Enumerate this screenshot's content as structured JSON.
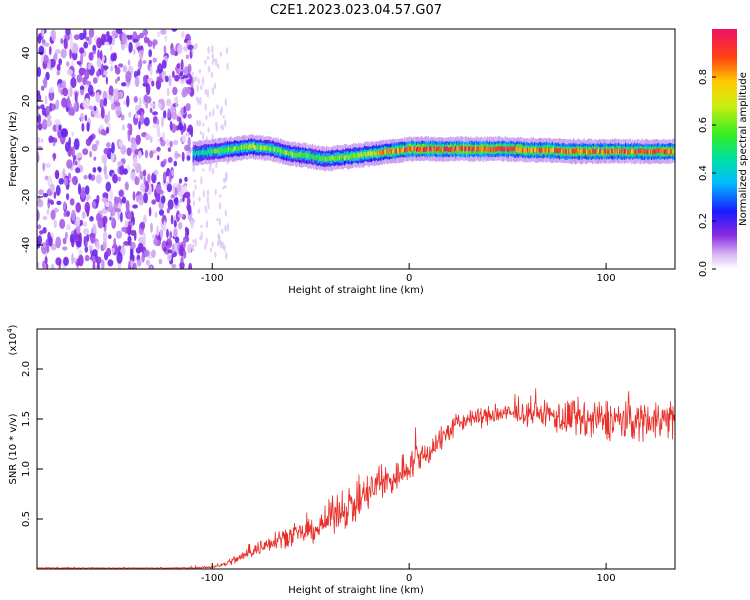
{
  "title": "C2E1.2023.023.04.57.G07",
  "colors": {
    "snr_line": "#e8302a",
    "axis": "#000000"
  },
  "chart_data": [
    {
      "type": "heatmap",
      "title": "C2E1.2023.023.04.57.G07",
      "xlabel": "Height of straight line (km)",
      "ylabel": "Frequency (Hz)",
      "xlim": [
        -189,
        135
      ],
      "ylim": [
        -50,
        50
      ],
      "x_ticks": [
        -100,
        0,
        100
      ],
      "y_ticks": [
        -40,
        -20,
        0,
        20,
        40
      ],
      "x_tick_labels": [
        "-100",
        "0",
        "100"
      ],
      "y_tick_labels": [
        "-40",
        "-20",
        "0",
        "20",
        "40"
      ],
      "colorbar": {
        "label": "Normalized spectral amplitude",
        "range": [
          0,
          1
        ],
        "ticks": [
          0.0,
          0.2,
          0.4,
          0.6,
          0.8
        ],
        "tick_labels": [
          "0.0",
          "0.2",
          "0.4",
          "0.6",
          "0.8"
        ]
      },
      "noise_region": {
        "x": [
          -189,
          -110
        ],
        "y": [
          -50,
          50
        ],
        "amplitude": 0.15
      },
      "ridge": {
        "x": [
          -110,
          -100,
          -90,
          -80,
          -70,
          -60,
          -50,
          -45,
          -40,
          -30,
          -20,
          -10,
          0,
          10,
          20,
          30,
          40,
          50,
          60,
          70,
          80,
          90,
          100,
          110,
          120,
          135
        ],
        "frequency_hz": [
          -2,
          -1,
          0,
          1,
          0,
          -2,
          -3,
          -4,
          -4,
          -3,
          -2,
          -1,
          0,
          0,
          0,
          0,
          0,
          0,
          -0.5,
          -0.5,
          -1,
          -1,
          -1,
          -1,
          -1,
          -1
        ],
        "peak_amplitude": [
          0.45,
          0.55,
          0.6,
          0.65,
          0.6,
          0.6,
          0.55,
          0.55,
          0.6,
          0.65,
          0.7,
          0.8,
          0.9,
          0.9,
          0.92,
          0.92,
          0.9,
          0.9,
          0.85,
          0.85,
          0.85,
          0.85,
          0.85,
          0.85,
          0.85,
          0.85
        ]
      }
    },
    {
      "type": "line",
      "xlabel": "Height of straight line (km)",
      "ylabel": "SNR (10 * v/v)",
      "y_scale_label": "(x10",
      "y_scale_exponent": "4",
      "y_scale_suffix": ")",
      "xlim": [
        -189,
        135
      ],
      "ylim": [
        0,
        2.4
      ],
      "x_ticks": [
        -100,
        0,
        100
      ],
      "x_tick_labels": [
        "-100",
        "0",
        "100"
      ],
      "y_ticks": [
        0.5,
        1.0,
        1.5,
        2.0
      ],
      "y_tick_labels": [
        "0.5",
        "1.0",
        "1.5",
        "2.0"
      ],
      "series": [
        {
          "color": "#e8302a",
          "x": [
            -189,
            -160,
            -130,
            -110,
            -100,
            -95,
            -90,
            -85,
            -80,
            -75,
            -70,
            -65,
            -60,
            -55,
            -50,
            -45,
            -40,
            -35,
            -30,
            -25,
            -20,
            -15,
            -10,
            -5,
            0,
            5,
            10,
            15,
            20,
            25,
            30,
            35,
            40,
            45,
            50,
            55,
            60,
            65,
            70,
            75,
            80,
            85,
            90,
            95,
            100,
            105,
            110,
            115,
            120,
            125,
            130,
            135
          ],
          "y": [
            0.01,
            0.01,
            0.01,
            0.01,
            0.02,
            0.04,
            0.08,
            0.12,
            0.18,
            0.22,
            0.28,
            0.32,
            0.33,
            0.35,
            0.38,
            0.42,
            0.52,
            0.6,
            0.62,
            0.68,
            0.78,
            0.85,
            0.88,
            0.95,
            1.05,
            1.1,
            1.18,
            1.28,
            1.38,
            1.45,
            1.5,
            1.52,
            1.53,
            1.55,
            1.55,
            1.55,
            1.55,
            1.56,
            1.55,
            1.52,
            1.5,
            1.5,
            1.48,
            1.48,
            1.5,
            1.5,
            1.48,
            1.48,
            1.5,
            1.5,
            1.5,
            1.5
          ],
          "noise_amplitude": [
            0.005,
            0.005,
            0.005,
            0.01,
            0.02,
            0.03,
            0.06,
            0.08,
            0.1,
            0.12,
            0.14,
            0.15,
            0.15,
            0.15,
            0.17,
            0.2,
            0.25,
            0.28,
            0.3,
            0.3,
            0.3,
            0.3,
            0.28,
            0.25,
            0.25,
            0.25,
            0.22,
            0.2,
            0.18,
            0.15,
            0.14,
            0.14,
            0.15,
            0.15,
            0.15,
            0.15,
            0.15,
            0.16,
            0.2,
            0.25,
            0.3,
            0.3,
            0.3,
            0.3,
            0.3,
            0.3,
            0.3,
            0.3,
            0.3,
            0.3,
            0.3,
            0.3
          ]
        }
      ]
    }
  ]
}
